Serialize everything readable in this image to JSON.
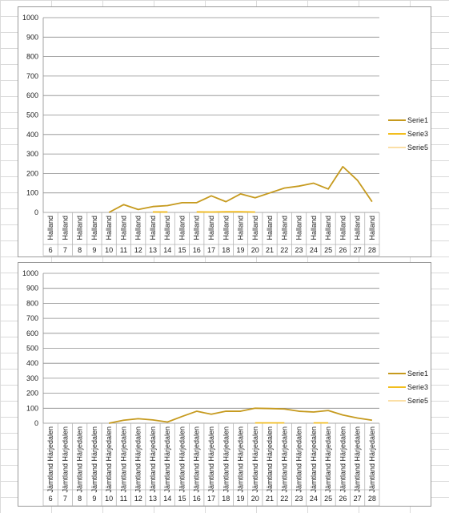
{
  "charts": [
    {
      "y_ticks": [
        "1000",
        "900",
        "800",
        "700",
        "600",
        "500",
        "400",
        "300",
        "200",
        "100",
        "0"
      ],
      "categories": [
        "6",
        "7",
        "8",
        "9",
        "10",
        "11",
        "12",
        "13",
        "14",
        "15",
        "16",
        "17",
        "18",
        "19",
        "20",
        "21",
        "22",
        "23",
        "24",
        "25",
        "26",
        "27",
        "28"
      ],
      "region_label": "Halland",
      "legend": [
        "Serie1",
        "Serie3",
        "Serie5"
      ]
    },
    {
      "y_ticks": [
        "1000",
        "900",
        "800",
        "700",
        "600",
        "500",
        "400",
        "300",
        "200",
        "100",
        "0"
      ],
      "categories": [
        "6",
        "7",
        "8",
        "9",
        "10",
        "11",
        "12",
        "13",
        "14",
        "15",
        "16",
        "17",
        "18",
        "19",
        "20",
        "21",
        "22",
        "23",
        "24",
        "25",
        "26",
        "27",
        "28"
      ],
      "region_label": "Jämtland Härjedalen",
      "legend": [
        "Serie1",
        "Serie3",
        "Serie5"
      ]
    }
  ],
  "colors": {
    "serie1": "#C69A1E",
    "serie3": "#F2BE1E",
    "serie5": "#FBDFA6",
    "grid": "#8c8c8c"
  },
  "chart_data": [
    {
      "type": "line",
      "categories": [
        "6",
        "7",
        "8",
        "9",
        "10",
        "11",
        "12",
        "13",
        "14",
        "15",
        "16",
        "17",
        "18",
        "19",
        "20",
        "21",
        "22",
        "23",
        "24",
        "25",
        "26",
        "27",
        "28"
      ],
      "category_group": "Halland",
      "ylim": [
        0,
        1000
      ],
      "ytick_step": 100,
      "grid": true,
      "legend_position": "right",
      "series": [
        {
          "name": "Serie1",
          "values": [
            null,
            null,
            null,
            null,
            0,
            40,
            15,
            30,
            35,
            50,
            50,
            85,
            55,
            95,
            75,
            100,
            125,
            135,
            150,
            120,
            235,
            165,
            55
          ]
        },
        {
          "name": "Serie3",
          "values": [
            null,
            null,
            null,
            null,
            null,
            null,
            null,
            2,
            2,
            null,
            2,
            2,
            3,
            3,
            2,
            null,
            null,
            null,
            null,
            2,
            null,
            null,
            null
          ]
        },
        {
          "name": "Serie5",
          "values": [
            null,
            null,
            null,
            null,
            null,
            null,
            null,
            4,
            4,
            null,
            5,
            3,
            5,
            5,
            3,
            null,
            null,
            null,
            null,
            3,
            null,
            null,
            null
          ]
        }
      ]
    },
    {
      "type": "line",
      "categories": [
        "6",
        "7",
        "8",
        "9",
        "10",
        "11",
        "12",
        "13",
        "14",
        "15",
        "16",
        "17",
        "18",
        "19",
        "20",
        "21",
        "22",
        "23",
        "24",
        "25",
        "26",
        "27",
        "28"
      ],
      "category_group": "Jämtland Härjedalen",
      "ylim": [
        0,
        1000
      ],
      "ytick_step": 100,
      "grid": true,
      "legend_position": "right",
      "series": [
        {
          "name": "Serie1",
          "values": [
            null,
            null,
            null,
            null,
            0,
            20,
            30,
            22,
            8,
            45,
            80,
            60,
            80,
            80,
            100,
            98,
            95,
            80,
            75,
            85,
            55,
            35,
            20
          ]
        },
        {
          "name": "Serie3",
          "values": [
            null,
            null,
            null,
            null,
            null,
            null,
            null,
            null,
            null,
            null,
            null,
            null,
            null,
            null,
            2,
            2,
            2,
            null,
            2,
            2,
            null,
            null,
            null
          ]
        },
        {
          "name": "Serie5",
          "values": [
            null,
            null,
            null,
            null,
            null,
            null,
            null,
            null,
            null,
            null,
            null,
            null,
            null,
            null,
            3,
            3,
            3,
            null,
            3,
            3,
            null,
            null,
            null
          ]
        }
      ]
    }
  ]
}
